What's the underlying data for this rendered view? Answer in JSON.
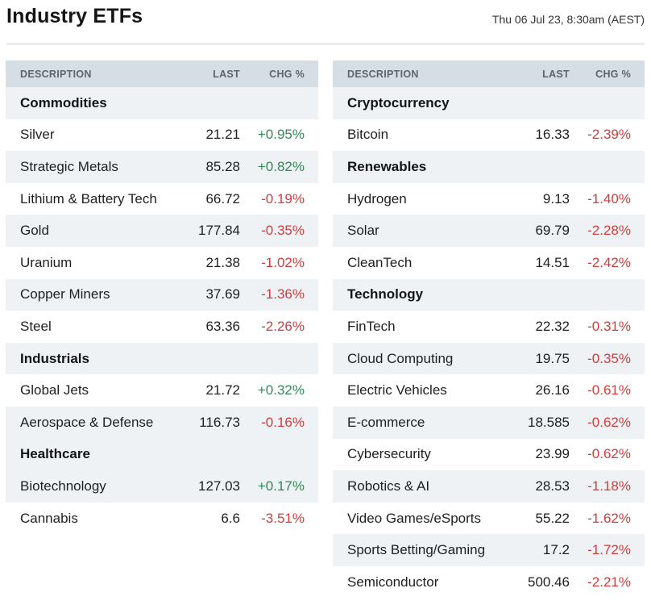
{
  "header": {
    "title": "Industry ETFs",
    "timestamp": "Thu 06 Jul 23, 8:30am (AEST)"
  },
  "columns": {
    "description": "DESCRIPTION",
    "last": "LAST",
    "chg": "CHG %"
  },
  "colors": {
    "positive": "#2f8a56",
    "negative": "#d43c3c",
    "header_bg": "#d5dde5",
    "band_bg": "#eef2f5"
  },
  "left_table": [
    {
      "type": "group",
      "label": "Commodities"
    },
    {
      "type": "row",
      "name": "Silver",
      "last": "21.21",
      "chg": "+0.95%",
      "dir": "pos"
    },
    {
      "type": "row",
      "name": "Strategic Metals",
      "last": "85.28",
      "chg": "+0.82%",
      "dir": "pos"
    },
    {
      "type": "row",
      "name": "Lithium & Battery Tech",
      "last": "66.72",
      "chg": "-0.19%",
      "dir": "neg"
    },
    {
      "type": "row",
      "name": "Gold",
      "last": "177.84",
      "chg": "-0.35%",
      "dir": "neg"
    },
    {
      "type": "row",
      "name": "Uranium",
      "last": "21.38",
      "chg": "-1.02%",
      "dir": "neg"
    },
    {
      "type": "row",
      "name": "Copper Miners",
      "last": "37.69",
      "chg": "-1.36%",
      "dir": "neg"
    },
    {
      "type": "row",
      "name": "Steel",
      "last": "63.36",
      "chg": "-2.26%",
      "dir": "neg"
    },
    {
      "type": "group",
      "label": "Industrials"
    },
    {
      "type": "row",
      "name": "Global Jets",
      "last": "21.72",
      "chg": "+0.32%",
      "dir": "pos"
    },
    {
      "type": "row",
      "name": "Aerospace & Defense",
      "last": "116.73",
      "chg": "-0.16%",
      "dir": "neg"
    },
    {
      "type": "group",
      "label": "Healthcare"
    },
    {
      "type": "row",
      "name": "Biotechnology",
      "last": "127.03",
      "chg": "+0.17%",
      "dir": "pos"
    },
    {
      "type": "row",
      "name": "Cannabis",
      "last": "6.6",
      "chg": "-3.51%",
      "dir": "neg"
    }
  ],
  "right_table": [
    {
      "type": "group",
      "label": "Cryptocurrency"
    },
    {
      "type": "row",
      "name": "Bitcoin",
      "last": "16.33",
      "chg": "-2.39%",
      "dir": "neg"
    },
    {
      "type": "group",
      "label": "Renewables"
    },
    {
      "type": "row",
      "name": "Hydrogen",
      "last": "9.13",
      "chg": "-1.40%",
      "dir": "neg"
    },
    {
      "type": "row",
      "name": "Solar",
      "last": "69.79",
      "chg": "-2.28%",
      "dir": "neg"
    },
    {
      "type": "row",
      "name": "CleanTech",
      "last": "14.51",
      "chg": "-2.42%",
      "dir": "neg"
    },
    {
      "type": "group",
      "label": "Technology"
    },
    {
      "type": "row",
      "name": "FinTech",
      "last": "22.32",
      "chg": "-0.31%",
      "dir": "neg"
    },
    {
      "type": "row",
      "name": "Cloud Computing",
      "last": "19.75",
      "chg": "-0.35%",
      "dir": "neg"
    },
    {
      "type": "row",
      "name": "Electric Vehicles",
      "last": "26.16",
      "chg": "-0.61%",
      "dir": "neg"
    },
    {
      "type": "row",
      "name": "E-commerce",
      "last": "18.585",
      "chg": "-0.62%",
      "dir": "neg"
    },
    {
      "type": "row",
      "name": "Cybersecurity",
      "last": "23.99",
      "chg": "-0.62%",
      "dir": "neg"
    },
    {
      "type": "row",
      "name": "Robotics & AI",
      "last": "28.53",
      "chg": "-1.18%",
      "dir": "neg"
    },
    {
      "type": "row",
      "name": "Video Games/eSports",
      "last": "55.22",
      "chg": "-1.62%",
      "dir": "neg"
    },
    {
      "type": "row",
      "name": "Sports Betting/Gaming",
      "last": "17.2",
      "chg": "-1.72%",
      "dir": "neg"
    },
    {
      "type": "row",
      "name": "Semiconductor",
      "last": "500.46",
      "chg": "-2.21%",
      "dir": "neg"
    }
  ]
}
